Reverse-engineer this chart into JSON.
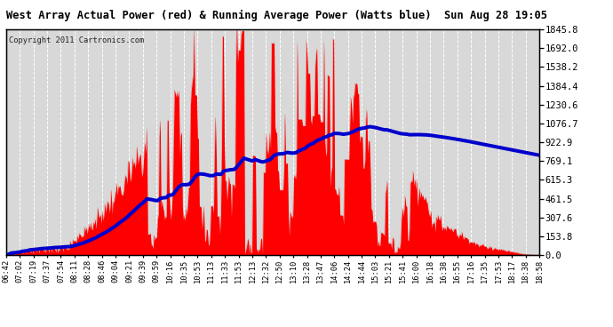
{
  "title": "West Array Actual Power (red) & Running Average Power (Watts blue)  Sun Aug 28 19:05",
  "copyright": "Copyright 2011 Cartronics.com",
  "ymax": 1845.8,
  "ymin": 0.0,
  "yticks": [
    0.0,
    153.8,
    307.6,
    461.5,
    615.3,
    769.1,
    922.9,
    1076.7,
    1230.6,
    1384.4,
    1538.2,
    1692.0,
    1845.8
  ],
  "bg_color": "#ffffff",
  "plot_bg_color": "#d8d8d8",
  "red_color": "#ff0000",
  "blue_color": "#0000cc",
  "grid_color": "#ffffff",
  "title_color": "#000000",
  "time_labels": [
    "06:42",
    "07:02",
    "07:19",
    "07:37",
    "07:54",
    "08:11",
    "08:28",
    "08:46",
    "09:04",
    "09:21",
    "09:39",
    "09:59",
    "10:16",
    "10:35",
    "10:53",
    "11:13",
    "11:33",
    "11:53",
    "12:13",
    "12:32",
    "12:50",
    "13:10",
    "13:28",
    "13:47",
    "14:06",
    "14:24",
    "14:44",
    "15:03",
    "15:21",
    "15:41",
    "16:00",
    "16:18",
    "16:38",
    "16:55",
    "17:16",
    "17:35",
    "17:53",
    "18:17",
    "18:38",
    "18:58"
  ]
}
